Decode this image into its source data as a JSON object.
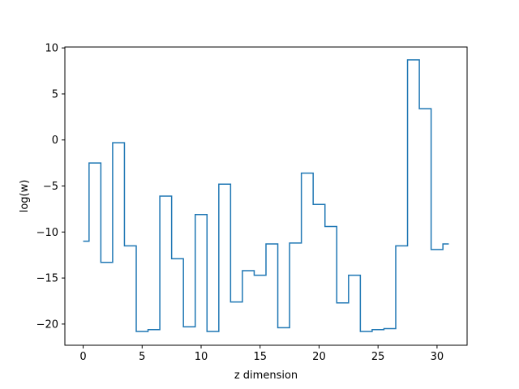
{
  "chart_data": {
    "type": "line",
    "drawstyle": "steps-mid",
    "title": "",
    "xlabel": "z dimension",
    "ylabel": "log(w)",
    "xlim": [
      -1.55,
      32.55
    ],
    "ylim": [
      -22.3,
      10.1
    ],
    "xticks": [
      0,
      5,
      10,
      15,
      20,
      25,
      30
    ],
    "yticks": [
      10,
      5,
      0,
      -5,
      -10,
      -15,
      -20
    ],
    "grid": false,
    "legend": "none",
    "color": "#1f77b4",
    "series": [
      {
        "x": [
          0,
          1,
          2,
          3,
          4,
          5,
          6,
          7,
          8,
          9,
          10,
          11,
          12,
          13,
          14,
          15,
          16,
          17,
          18,
          19,
          20,
          21,
          22,
          23,
          24,
          25,
          26,
          27,
          28,
          29,
          30,
          31
        ],
        "values": [
          -11.0,
          -2.5,
          -13.3,
          -0.3,
          -11.5,
          -20.8,
          -20.6,
          -6.1,
          -12.9,
          -20.3,
          -8.1,
          -20.8,
          -4.8,
          -17.6,
          -14.2,
          -14.7,
          -11.3,
          -20.4,
          -11.2,
          -3.6,
          -7.0,
          -9.4,
          -17.7,
          -14.7,
          -20.8,
          -20.6,
          -20.5,
          -11.5,
          8.7,
          3.4,
          -11.9,
          -11.3
        ]
      }
    ]
  }
}
